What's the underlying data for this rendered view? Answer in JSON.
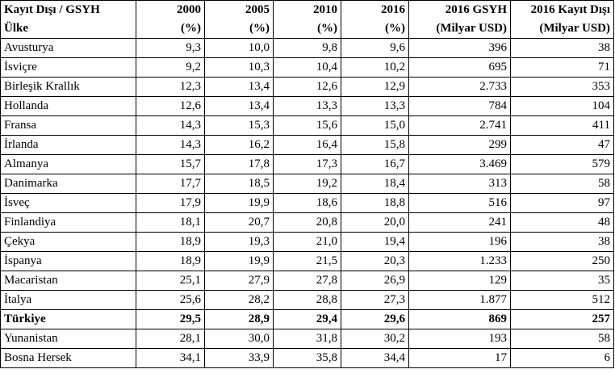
{
  "table": {
    "header": [
      [
        "Kayıt Dışı / GSYH",
        "2000",
        "2005",
        "2010",
        "2016",
        "2016 GSYH",
        "2016 Kayıt Dışı"
      ],
      [
        "Ülke",
        "(%)",
        "(%)",
        "(%)",
        "(%)",
        "(Milyar USD)",
        "(Milyar USD)"
      ]
    ],
    "rows": [
      [
        "Avusturya",
        "9,3",
        "10,0",
        "9,8",
        "9,6",
        "396",
        "38"
      ],
      [
        "İsviçre",
        "9,2",
        "10,3",
        "10,4",
        "10,2",
        "695",
        "71"
      ],
      [
        "Birleşik Krallık",
        "12,3",
        "13,4",
        "12,6",
        "12,9",
        "2.733",
        "353"
      ],
      [
        "Hollanda",
        "12,6",
        "13,4",
        "13,3",
        "13,3",
        "784",
        "104"
      ],
      [
        "Fransa",
        "14,3",
        "15,3",
        "15,6",
        "15,0",
        "2.741",
        "411"
      ],
      [
        "İrlanda",
        "14,3",
        "16,2",
        "16,4",
        "15,8",
        "299",
        "47"
      ],
      [
        "Almanya",
        "15,7",
        "17,8",
        "17,3",
        "16,7",
        "3.469",
        "579"
      ],
      [
        "Danimarka",
        "17,7",
        "18,5",
        "19,2",
        "18,4",
        "313",
        "58"
      ],
      [
        "İsveç",
        "17,9",
        "19,9",
        "18,6",
        "18,8",
        "516",
        "97"
      ],
      [
        "Finlandiya",
        "18,1",
        "20,7",
        "20,8",
        "20,0",
        "241",
        "48"
      ],
      [
        "Çekya",
        "18,9",
        "19,3",
        "21,0",
        "19,4",
        "196",
        "38"
      ],
      [
        "İspanya",
        "18,9",
        "19,9",
        "21,5",
        "20,3",
        "1.233",
        "250"
      ],
      [
        "Macaristan",
        "25,1",
        "27,9",
        "27,8",
        "26,9",
        "129",
        "35"
      ],
      [
        "İtalya",
        "25,6",
        "28,2",
        "28,8",
        "27,3",
        "1.877",
        "512"
      ],
      [
        "Türkiye",
        "29,5",
        "28,9",
        "29,4",
        "29,6",
        "869",
        "257"
      ],
      [
        "Yunanistan",
        "28,1",
        "30,0",
        "31,8",
        "30,2",
        "193",
        "58"
      ],
      [
        "Bosna Hersek",
        "34,1",
        "33,9",
        "35,8",
        "34,4",
        "17",
        "6"
      ]
    ]
  }
}
